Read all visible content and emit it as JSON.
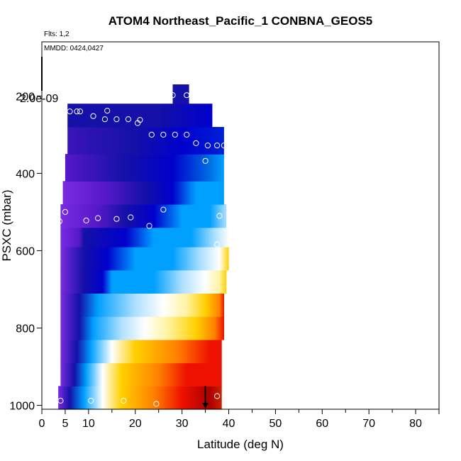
{
  "chart_data": {
    "type": "heatmap",
    "title": "ATOM4 Northeast_Pacific_1 CONBNA_GEOS5",
    "flights_text": "Flts: 1,2",
    "dates_text": "MMDD: 0424,0427",
    "scale_label": "2.0e-09",
    "xlabel": "Latitude (deg N)",
    "ylabel": "PSXC (mbar)",
    "xlim": [
      0,
      85
    ],
    "ylim": [
      1010,
      60
    ],
    "x_ticks": [
      0,
      5,
      10,
      20,
      30,
      40,
      50,
      60,
      70,
      80
    ],
    "y_ticks": [
      200,
      400,
      600,
      800,
      1000
    ],
    "colors": {
      "purple": "#7a2be0",
      "violet": "#5518c8",
      "navy": "#1410a8",
      "blue": "#0000cc",
      "sky": "#00a0ff",
      "lightblue": "#aee0ff",
      "white": "#ffffff",
      "lightyellow": "#fff3a0",
      "yellow": "#ffd000",
      "orange": "#ff8000",
      "red": "#ee1100",
      "darkred": "#aa0000"
    },
    "curtain": [
      {
        "p_top": 950,
        "p_bot": 1010,
        "x_start": 3.5,
        "x_end": 38.5,
        "stops": [
          [
            3.5,
            "#7a2be0"
          ],
          [
            6,
            "#1410a8"
          ],
          [
            9,
            "#00a0ff"
          ],
          [
            13,
            "#ffffff"
          ],
          [
            17,
            "#ffd000"
          ],
          [
            24,
            "#ff8000"
          ],
          [
            30,
            "#ee1100"
          ],
          [
            36,
            "#aa0000"
          ],
          [
            38.5,
            "#cc2200"
          ]
        ]
      },
      {
        "p_top": 890,
        "p_bot": 950,
        "x_start": 4.0,
        "x_end": 38.5,
        "stops": [
          [
            4,
            "#7a2be0"
          ],
          [
            7,
            "#1410a8"
          ],
          [
            9.5,
            "#00a0ff"
          ],
          [
            13,
            "#ffffff"
          ],
          [
            17,
            "#ffd000"
          ],
          [
            25,
            "#ff8000"
          ],
          [
            31,
            "#ee1100"
          ],
          [
            38.5,
            "#ee1100"
          ]
        ]
      },
      {
        "p_top": 830,
        "p_bot": 890,
        "x_start": 4.0,
        "x_end": 38.5,
        "stops": [
          [
            4,
            "#7a2be0"
          ],
          [
            7.5,
            "#1410a8"
          ],
          [
            10.5,
            "#00a0ff"
          ],
          [
            15,
            "#ffffff"
          ],
          [
            20,
            "#ffd000"
          ],
          [
            29,
            "#ff8000"
          ],
          [
            36,
            "#ee1100"
          ],
          [
            38.5,
            "#ee1100"
          ]
        ]
      },
      {
        "p_top": 770,
        "p_bot": 830,
        "x_start": 4.0,
        "x_end": 39.0,
        "stops": [
          [
            4,
            "#7a2be0"
          ],
          [
            8,
            "#1410a8"
          ],
          [
            11,
            "#00a0ff"
          ],
          [
            17,
            "#aee0ff"
          ],
          [
            22,
            "#ffffff"
          ],
          [
            27,
            "#fff3a0"
          ],
          [
            33,
            "#ffd000"
          ],
          [
            37,
            "#ff8000"
          ],
          [
            39,
            "#ee1100"
          ]
        ]
      },
      {
        "p_top": 710,
        "p_bot": 770,
        "x_start": 4.0,
        "x_end": 39.0,
        "stops": [
          [
            4,
            "#7a2be0"
          ],
          [
            8,
            "#1410a8"
          ],
          [
            12,
            "#00a0ff"
          ],
          [
            20,
            "#aee0ff"
          ],
          [
            26,
            "#ffffff"
          ],
          [
            31,
            "#fff3a0"
          ],
          [
            35,
            "#ffd000"
          ],
          [
            38,
            "#ff8000"
          ],
          [
            39,
            "#ee1100"
          ]
        ]
      },
      {
        "p_top": 650,
        "p_bot": 710,
        "x_start": 4.0,
        "x_end": 39.5,
        "stops": [
          [
            4,
            "#7a2be0"
          ],
          [
            9,
            "#1410a8"
          ],
          [
            13,
            "#0000cc"
          ],
          [
            15,
            "#00a0ff"
          ],
          [
            24,
            "#00a0ff"
          ],
          [
            30,
            "#aee0ff"
          ],
          [
            35,
            "#ffffff"
          ],
          [
            38,
            "#fff3a0"
          ],
          [
            39.5,
            "#ffd000"
          ]
        ]
      },
      {
        "p_top": 590,
        "p_bot": 650,
        "x_start": 4.0,
        "x_end": 40.0,
        "stops": [
          [
            4,
            "#7a2be0"
          ],
          [
            9,
            "#1410a8"
          ],
          [
            14,
            "#0000cc"
          ],
          [
            20,
            "#00a0ff"
          ],
          [
            28,
            "#00a0ff"
          ],
          [
            34,
            "#aee0ff"
          ],
          [
            38,
            "#ffffff"
          ],
          [
            40,
            "#ffd000"
          ]
        ]
      },
      {
        "p_top": 540,
        "p_bot": 590,
        "x_start": 4.0,
        "x_end": 40.0,
        "stops": [
          [
            4,
            "#7a2be0"
          ],
          [
            8,
            "#5518c8"
          ],
          [
            9,
            "#1410a8"
          ],
          [
            18,
            "#0000cc"
          ],
          [
            24,
            "#00a0ff"
          ],
          [
            32,
            "#00a0ff"
          ],
          [
            37,
            "#aee0ff"
          ],
          [
            40,
            "#ffffff"
          ]
        ]
      },
      {
        "p_top": 480,
        "p_bot": 540,
        "x_start": 4.0,
        "x_end": 39.5,
        "stops": [
          [
            4,
            "#7a2be0"
          ],
          [
            12,
            "#5518c8"
          ],
          [
            18,
            "#1410a8"
          ],
          [
            24,
            "#0000cc"
          ],
          [
            30,
            "#00a0ff"
          ],
          [
            36,
            "#00a0ff"
          ],
          [
            39.5,
            "#aee0ff"
          ]
        ]
      },
      {
        "p_top": 420,
        "p_bot": 480,
        "x_start": 4.5,
        "x_end": 39.0,
        "stops": [
          [
            4.5,
            "#7a2be0"
          ],
          [
            14,
            "#5518c8"
          ],
          [
            22,
            "#1410a8"
          ],
          [
            28,
            "#0000cc"
          ],
          [
            33,
            "#00a0ff"
          ],
          [
            39,
            "#00a0ff"
          ]
        ]
      },
      {
        "p_top": 350,
        "p_bot": 420,
        "x_start": 5.0,
        "x_end": 39.0,
        "stops": [
          [
            5,
            "#5518c8"
          ],
          [
            18,
            "#1410a8"
          ],
          [
            28,
            "#0000cc"
          ],
          [
            35,
            "#0060e0"
          ],
          [
            39,
            "#00a0ff"
          ]
        ]
      },
      {
        "p_top": 280,
        "p_bot": 350,
        "x_start": 5.5,
        "x_end": 39.0,
        "stops": [
          [
            5.5,
            "#3a14b8"
          ],
          [
            20,
            "#1410a8"
          ],
          [
            30,
            "#0000cc"
          ],
          [
            39,
            "#0020d8"
          ]
        ]
      },
      {
        "p_top": 220,
        "p_bot": 280,
        "x_start": 5.5,
        "x_end": 36.5,
        "stops": [
          [
            5.5,
            "#1410a8"
          ],
          [
            25,
            "#1410a8"
          ],
          [
            36.5,
            "#0000cc"
          ]
        ]
      },
      {
        "p_top": 170,
        "p_bot": 220,
        "x_start": 28.0,
        "x_end": 31.5,
        "stops": [
          [
            28,
            "#1410a8"
          ],
          [
            31.5,
            "#1410a8"
          ]
        ]
      }
    ],
    "points": [
      {
        "x": 6.0,
        "p": 240
      },
      {
        "x": 7.5,
        "p": 240
      },
      {
        "x": 8.2,
        "p": 240
      },
      {
        "x": 14.0,
        "p": 238
      },
      {
        "x": 11.0,
        "p": 252
      },
      {
        "x": 13.5,
        "p": 260
      },
      {
        "x": 16.0,
        "p": 260
      },
      {
        "x": 18.5,
        "p": 260
      },
      {
        "x": 21.0,
        "p": 262
      },
      {
        "x": 20.5,
        "p": 270
      },
      {
        "x": 28.0,
        "p": 198
      },
      {
        "x": 31.0,
        "p": 198
      },
      {
        "x": 23.5,
        "p": 300
      },
      {
        "x": 26.0,
        "p": 300
      },
      {
        "x": 28.5,
        "p": 300
      },
      {
        "x": 31.0,
        "p": 300
      },
      {
        "x": 33.0,
        "p": 322
      },
      {
        "x": 35.5,
        "p": 328
      },
      {
        "x": 37.5,
        "p": 328
      },
      {
        "x": 39.0,
        "p": 328
      },
      {
        "x": 35.0,
        "p": 368
      },
      {
        "x": 5.0,
        "p": 500
      },
      {
        "x": 26.0,
        "p": 494
      },
      {
        "x": 3.8,
        "p": 524
      },
      {
        "x": 9.5,
        "p": 522
      },
      {
        "x": 12.0,
        "p": 516
      },
      {
        "x": 16.0,
        "p": 518
      },
      {
        "x": 19.0,
        "p": 514
      },
      {
        "x": 23.0,
        "p": 536
      },
      {
        "x": 38.0,
        "p": 510
      },
      {
        "x": 37.5,
        "p": 584
      },
      {
        "x": 4.0,
        "p": 988
      },
      {
        "x": 10.5,
        "p": 988
      },
      {
        "x": 17.5,
        "p": 988
      },
      {
        "x": 24.5,
        "p": 996
      },
      {
        "x": 37.5,
        "p": 976
      }
    ],
    "arrow": {
      "x": 35.0,
      "p_from": 950,
      "p_to": 1008
    }
  }
}
